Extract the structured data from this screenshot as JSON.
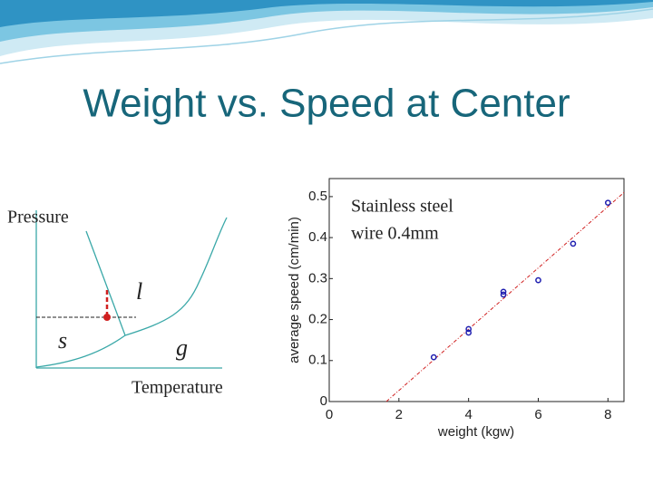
{
  "title": "Weight vs. Speed at Center",
  "diagram": {
    "y_label": "Pressure",
    "x_label": "Temperature",
    "liquid": "l",
    "solid": "s",
    "gas": "g"
  },
  "chart_data": {
    "type": "scatter",
    "xlabel": "weight (kgw)",
    "ylabel": "average speed (cm/min)",
    "annotation": [
      "Stainless steel",
      "wire 0.4mm"
    ],
    "points": {
      "color": "#1f1fb0",
      "x": [
        3,
        4,
        4,
        5,
        5,
        6,
        7,
        8
      ],
      "values": [
        0.108,
        0.177,
        0.168,
        0.268,
        0.261,
        0.296,
        0.385,
        0.485
      ]
    },
    "fit": {
      "color": "#d02020",
      "x": [
        1.64,
        8.46
      ],
      "values": [
        0,
        0.51
      ]
    },
    "xlim": [
      0,
      8.46
    ],
    "ylim": [
      0,
      0.544
    ],
    "xticks": [
      0,
      2,
      4,
      6,
      8
    ],
    "yticks": [
      0,
      0.1,
      0.2,
      0.3,
      0.4,
      0.5
    ]
  }
}
